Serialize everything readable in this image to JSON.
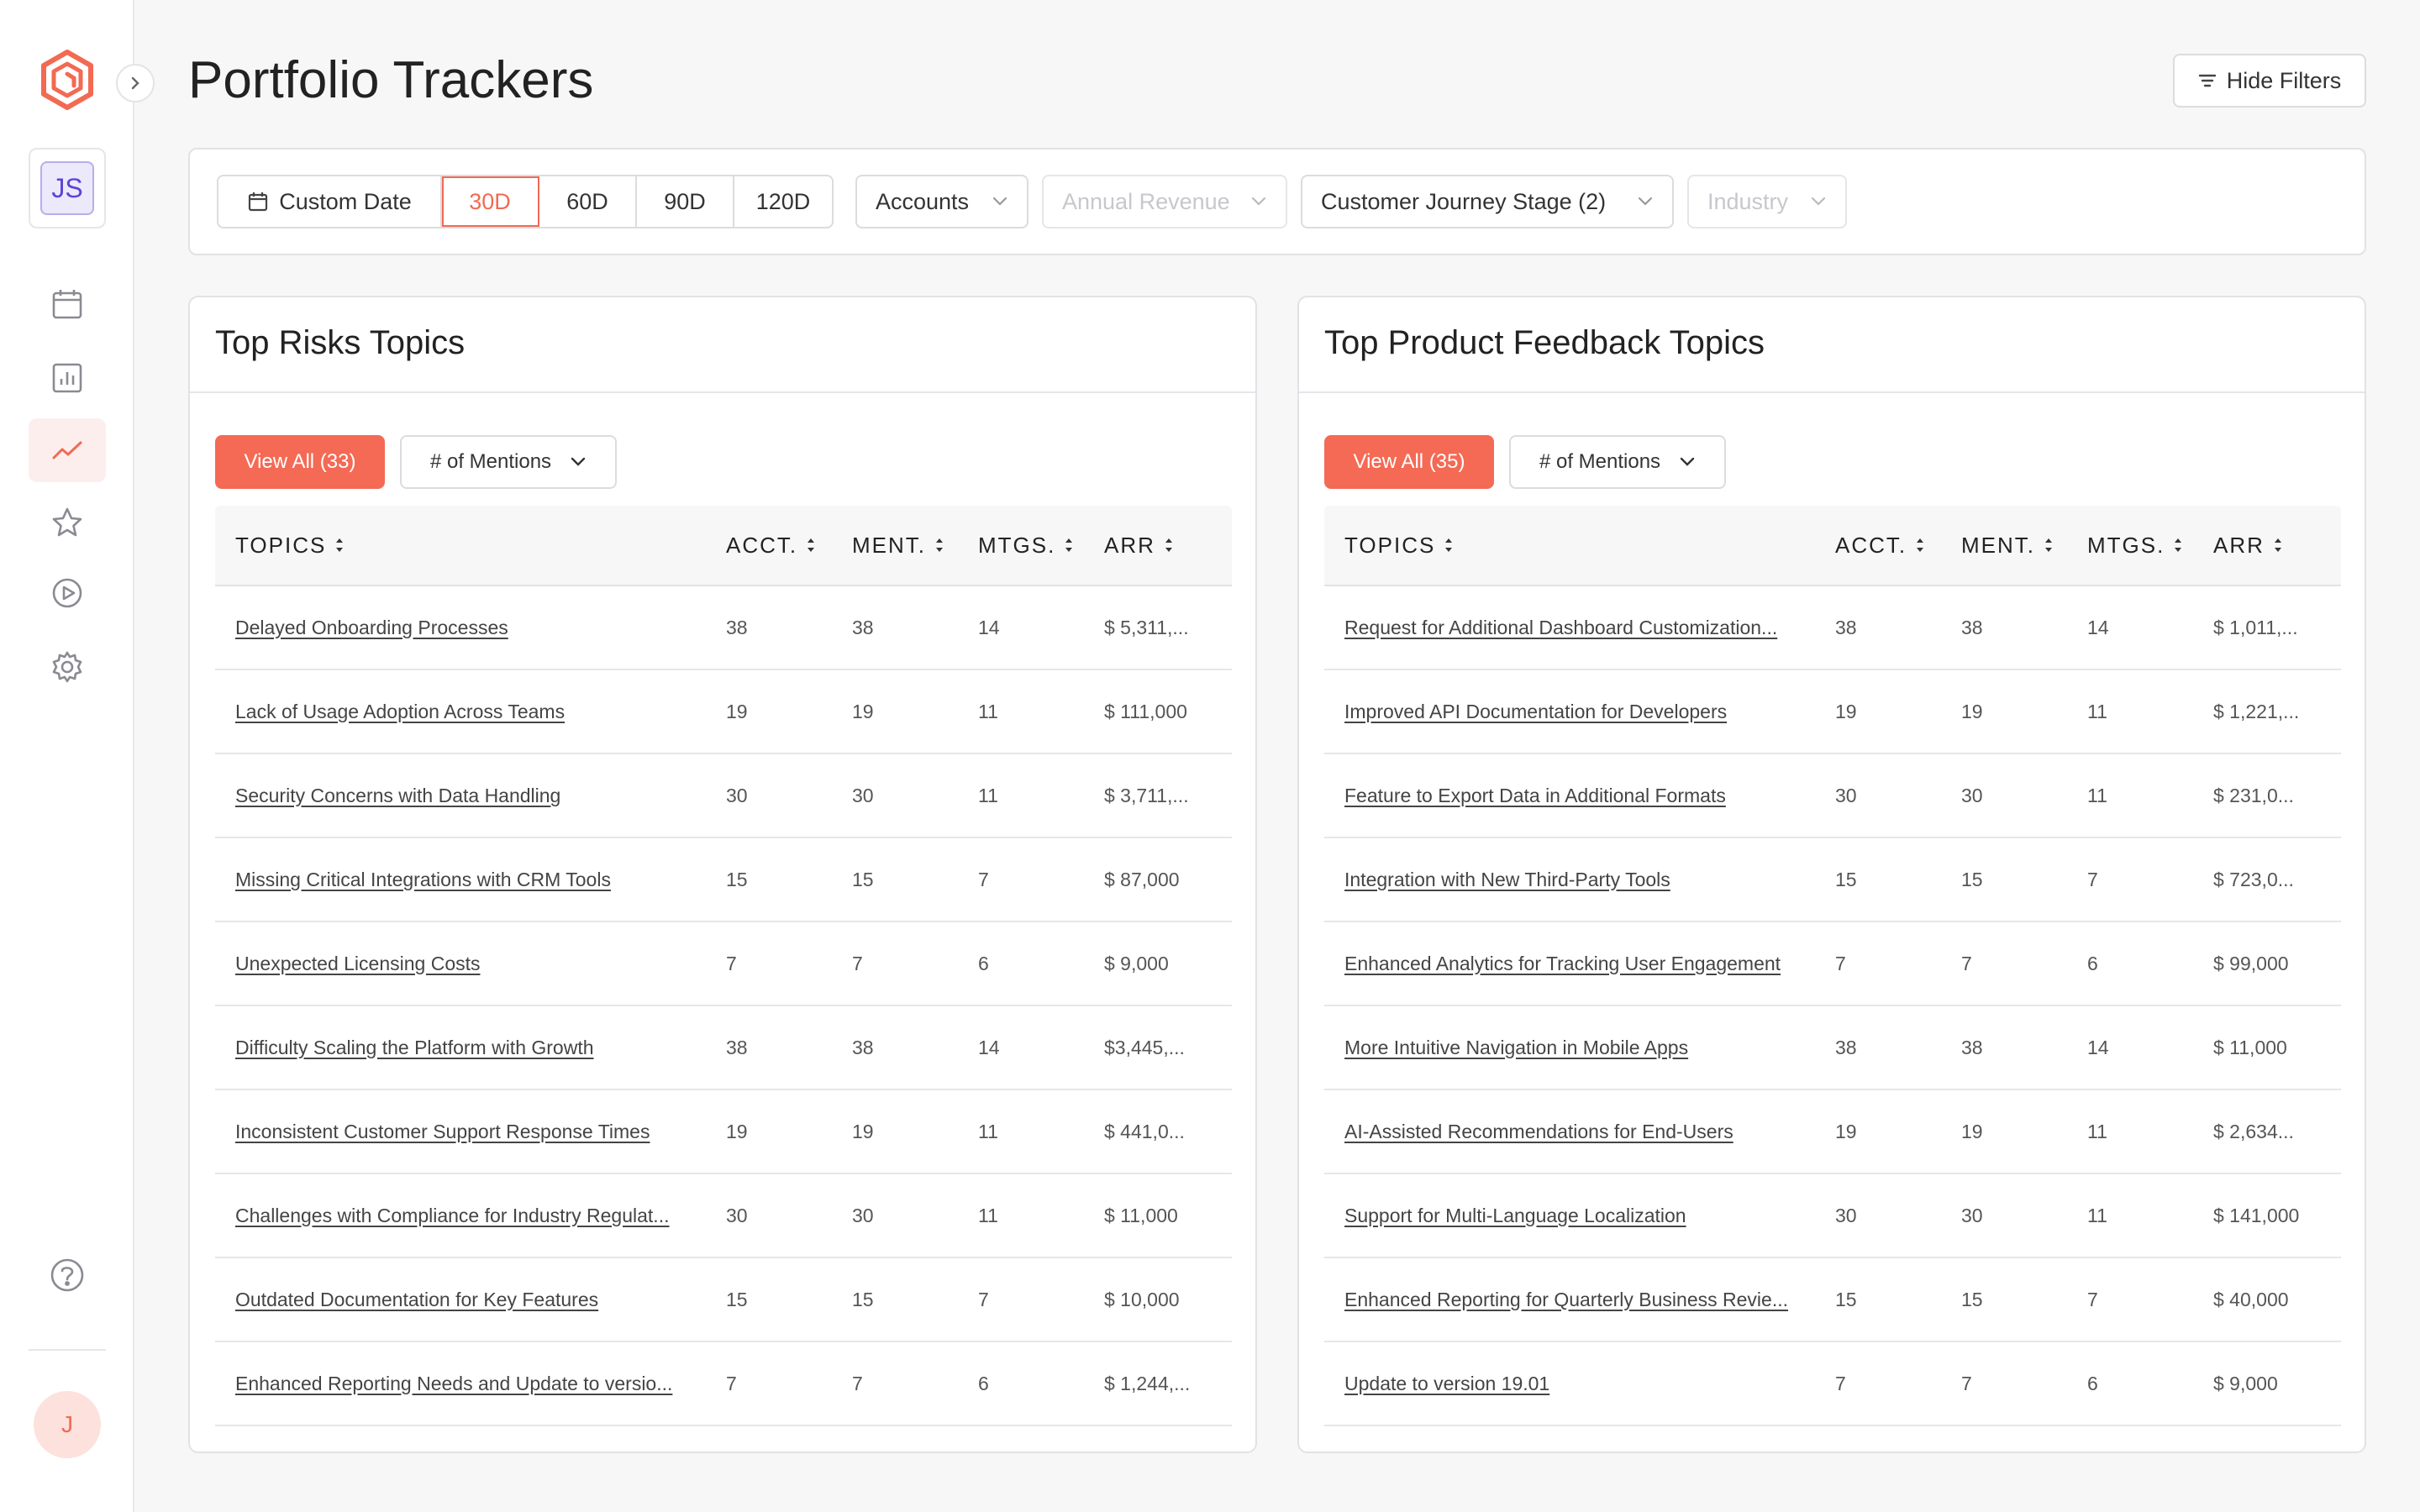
{
  "page": {
    "title": "Portfolio Trackers"
  },
  "sidebar": {
    "workspace_initials": "JS",
    "avatar_initial": "J",
    "nav": [
      {
        "icon": "calendar-icon"
      },
      {
        "icon": "bar-chart-icon"
      },
      {
        "icon": "trend-line-icon",
        "active": true
      },
      {
        "icon": "star-icon"
      },
      {
        "icon": "play-circle-icon"
      },
      {
        "icon": "gear-icon"
      }
    ]
  },
  "header": {
    "hide_filters_label": "Hide Filters"
  },
  "filters": {
    "custom_date_label": "Custom Date",
    "ranges": [
      "30D",
      "60D",
      "90D",
      "120D"
    ],
    "active_range": "30D",
    "accounts_label": "Accounts",
    "annual_revenue_label": "Annual Revenue",
    "journey_stage_label": "Customer Journey Stage (2)",
    "industry_label": "Industry"
  },
  "colors": {
    "accent": "#f46a55",
    "workspace": "#5b45d6"
  },
  "risks": {
    "title": "Top Risks Topics",
    "view_all_label": "View All (33)",
    "metric_label": "# of Mentions",
    "columns": [
      "TOPICS",
      "ACCT.",
      "MENT.",
      "MTGS.",
      "ARR"
    ],
    "rows": [
      {
        "topic": "Delayed Onboarding Processes",
        "acct": "38",
        "ment": "38",
        "mtgs": "14",
        "arr": "$ 5,311,..."
      },
      {
        "topic": "Lack of Usage Adoption Across Teams",
        "acct": "19",
        "ment": "19",
        "mtgs": "11",
        "arr": "$ 111,000"
      },
      {
        "topic": "Security Concerns with Data Handling",
        "acct": "30",
        "ment": "30",
        "mtgs": "11",
        "arr": "$ 3,711,..."
      },
      {
        "topic": "Missing Critical Integrations with CRM Tools",
        "acct": "15",
        "ment": "15",
        "mtgs": "7",
        "arr": "$ 87,000"
      },
      {
        "topic": "Unexpected Licensing Costs",
        "acct": "7",
        "ment": "7",
        "mtgs": "6",
        "arr": "$ 9,000"
      },
      {
        "topic": "Difficulty Scaling the Platform with Growth",
        "acct": "38",
        "ment": "38",
        "mtgs": "14",
        "arr": "$3,445,..."
      },
      {
        "topic": "Inconsistent Customer Support Response Times",
        "acct": "19",
        "ment": "19",
        "mtgs": "11",
        "arr": "$ 441,0..."
      },
      {
        "topic": "Challenges with Compliance for Industry Regulat...",
        "acct": "30",
        "ment": "30",
        "mtgs": "11",
        "arr": "$ 11,000"
      },
      {
        "topic": "Outdated Documentation for Key Features",
        "acct": "15",
        "ment": "15",
        "mtgs": "7",
        "arr": "$ 10,000"
      },
      {
        "topic": "Enhanced Reporting Needs and Update to versio...",
        "acct": "7",
        "ment": "7",
        "mtgs": "6",
        "arr": "$ 1,244,..."
      }
    ]
  },
  "feedback": {
    "title": "Top Product Feedback Topics",
    "view_all_label": "View All (35)",
    "metric_label": "# of Mentions",
    "columns": [
      "TOPICS",
      "ACCT.",
      "MENT.",
      "MTGS.",
      "ARR"
    ],
    "rows": [
      {
        "topic": "Request for Additional Dashboard Customization...",
        "acct": "38",
        "ment": "38",
        "mtgs": "14",
        "arr": "$ 1,011,..."
      },
      {
        "topic": "Improved API Documentation for Developers",
        "acct": "19",
        "ment": "19",
        "mtgs": "11",
        "arr": "$ 1,221,..."
      },
      {
        "topic": "Feature to Export Data in Additional Formats",
        "acct": "30",
        "ment": "30",
        "mtgs": "11",
        "arr": "$ 231,0..."
      },
      {
        "topic": "Integration with New Third-Party Tools",
        "acct": "15",
        "ment": "15",
        "mtgs": "7",
        "arr": "$ 723,0..."
      },
      {
        "topic": "Enhanced Analytics for Tracking User Engagement",
        "acct": "7",
        "ment": "7",
        "mtgs": "6",
        "arr": "$ 99,000"
      },
      {
        "topic": "More Intuitive Navigation in Mobile Apps",
        "acct": "38",
        "ment": "38",
        "mtgs": "14",
        "arr": "$ 11,000"
      },
      {
        "topic": "AI-Assisted Recommendations for End-Users",
        "acct": "19",
        "ment": "19",
        "mtgs": "11",
        "arr": "$ 2,634..."
      },
      {
        "topic": "Support for Multi-Language Localization",
        "acct": "30",
        "ment": "30",
        "mtgs": "11",
        "arr": "$ 141,000"
      },
      {
        "topic": "Enhanced Reporting for Quarterly Business Revie...",
        "acct": "15",
        "ment": "15",
        "mtgs": "7",
        "arr": "$ 40,000"
      },
      {
        "topic": "Update to version 19.01",
        "acct": "7",
        "ment": "7",
        "mtgs": "6",
        "arr": "$ 9,000"
      }
    ]
  }
}
